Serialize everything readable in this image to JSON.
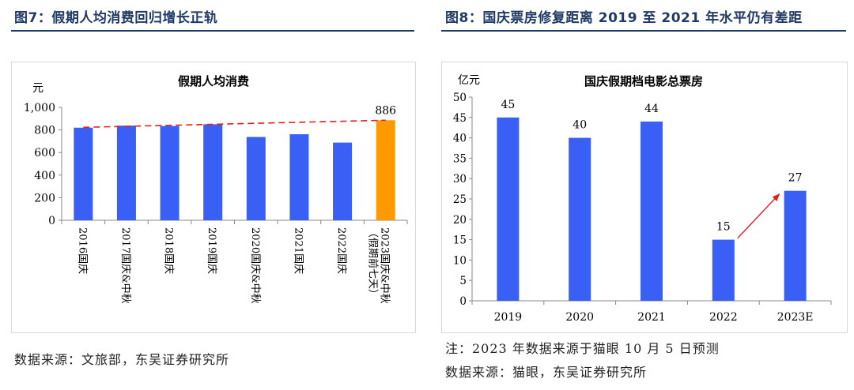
{
  "left": {
    "figure_title": "图7：假期人均消费回归增长正轨",
    "source": "数据来源：文旅部，东吴证券研究所"
  },
  "right": {
    "figure_title": "图8：国庆票房修复距离 2019 至 2021 年水平仍有差距",
    "note": "注：2023 年数据来源于猫眼 10 月 5 日预测",
    "source": "数据来源：猫眼，东吴证券研究所"
  },
  "colors": {
    "bar": "#3a5ff5",
    "highlight": "#ff9900",
    "trend": "#e02020",
    "arrow": "#e02020",
    "title": "#1f3a66"
  },
  "chart_data": [
    {
      "type": "bar",
      "title": "假期人均消费",
      "ylabel": "元",
      "ylim": [
        0,
        1000
      ],
      "yticks": [
        0,
        200,
        400,
        600,
        800,
        1000
      ],
      "ytick_labels": [
        "0",
        "200",
        "400",
        "600",
        "800",
        "1,000"
      ],
      "categories": [
        "2016国庆",
        "2017国庆&中秋",
        "2018国庆",
        "2019国庆",
        "2020国庆&中秋",
        "2021国庆",
        "2022国庆",
        "2023国庆&中秋（假期前七天）"
      ],
      "values": [
        820,
        838,
        835,
        850,
        738,
        762,
        688,
        886
      ],
      "highlight_index": 7,
      "data_labels": [
        {
          "index": 7,
          "text": "886"
        }
      ],
      "trendline": {
        "from_index": 0,
        "from_value": 823,
        "to_index": 7,
        "to_value": 886,
        "style": "dashed"
      }
    },
    {
      "type": "bar",
      "title": "国庆假期档电影总票房",
      "ylabel": "亿元",
      "ylim": [
        0,
        50
      ],
      "yticks": [
        0,
        5,
        10,
        15,
        20,
        25,
        30,
        35,
        40,
        45,
        50
      ],
      "categories": [
        "2019",
        "2020",
        "2021",
        "2022",
        "2023E"
      ],
      "values": [
        45,
        40,
        44,
        15,
        27
      ],
      "data_labels": [
        "45",
        "40",
        "44",
        "15",
        "27"
      ],
      "arrow": {
        "from_index": 3,
        "to_index": 4
      }
    }
  ]
}
